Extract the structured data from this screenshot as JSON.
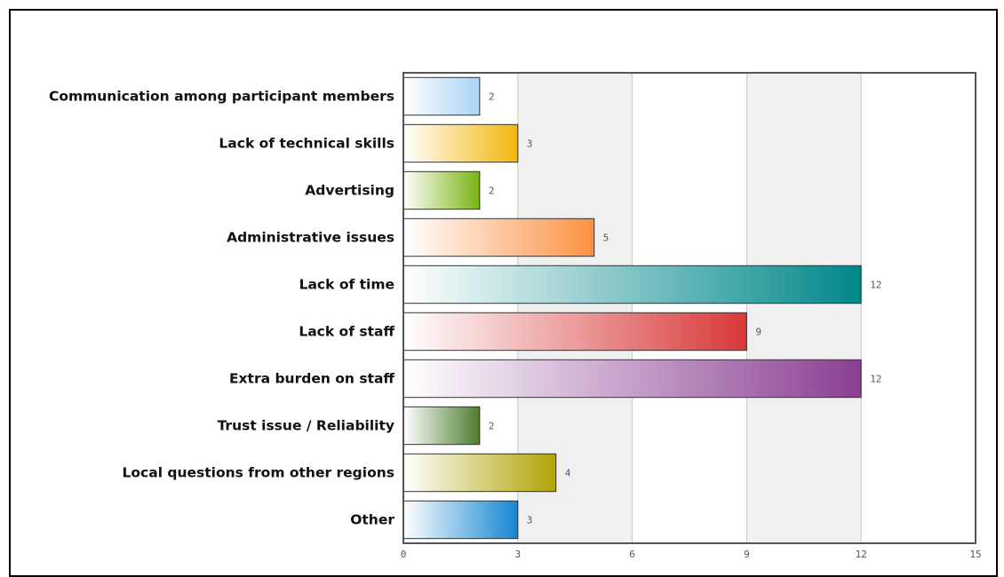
{
  "chart_data": {
    "type": "bar",
    "orientation": "horizontal",
    "title": "",
    "xlabel": "",
    "ylabel": "",
    "xlim": [
      0,
      15
    ],
    "ticks": [
      "0",
      "3",
      "6",
      "9",
      "12",
      "15"
    ],
    "grid": true,
    "legend": "none",
    "categories": [
      "Communication among participant members",
      "Lack of technical skills",
      "Advertising",
      "Administrative issues",
      "Lack of time",
      "Lack of staff",
      "Extra burden on staff",
      "Trust issue / Reliability",
      "Local questions from other regions",
      "Other"
    ],
    "values": [
      2,
      3,
      2,
      5,
      12,
      9,
      12,
      2,
      4,
      3
    ],
    "bar_colors": [
      "#a9d3f5",
      "#f2b70c",
      "#7ab413",
      "#fb9245",
      "#00878a",
      "#d93838",
      "#8b3f92",
      "#4d7d2f",
      "#b0a406",
      "#1486d2"
    ]
  }
}
